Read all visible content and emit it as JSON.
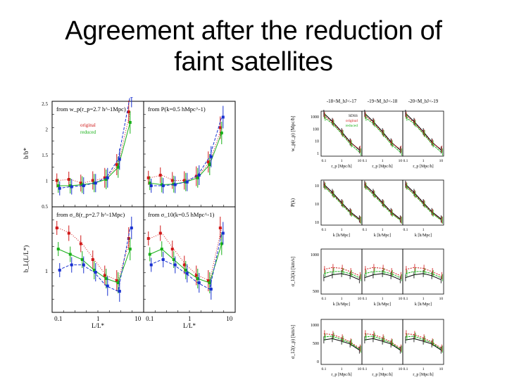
{
  "slide": {
    "title_line1": "Agreement after the reduction of",
    "title_line2": "faint satellites"
  },
  "colors": {
    "black": "#000000",
    "red": "#d01818",
    "green": "#18b018",
    "blue": "#1830d0",
    "magenta": "#c020c0"
  },
  "chart_data": [
    {
      "type": "line",
      "figure": "left",
      "rows": 2,
      "cols": 2,
      "x_ticks": [
        "0.1",
        "1",
        "10"
      ],
      "x_label": "L/L*",
      "y_label_top": "b/b*",
      "y_label_bottom": "b_L(L/L*)",
      "y_ticks_top": [
        "2.5",
        "2",
        "1.5",
        "1",
        "0.5"
      ],
      "y_ticks_bottom": [
        "1"
      ],
      "legend": [
        "original",
        "reduced"
      ],
      "panels": [
        {
          "label": "from w_p(r_p=2.7 h^-1Mpc)",
          "x": [
            0.1,
            0.2,
            0.4,
            0.8,
            1.6,
            3.2,
            6.4
          ],
          "series": [
            {
              "color": "red",
              "values": [
                1.0,
                1.02,
                0.95,
                1.0,
                1.05,
                1.3,
                2.3
              ]
            },
            {
              "color": "green",
              "values": [
                0.9,
                0.9,
                0.92,
                0.95,
                1.02,
                1.25,
                2.1
              ]
            },
            {
              "color": "blue",
              "values": [
                0.85,
                0.88,
                0.9,
                0.95,
                1.05,
                1.4,
                2.6
              ]
            }
          ]
        },
        {
          "label": "from P(k=0.5 hMpc^-1)",
          "x": [
            0.1,
            0.2,
            0.4,
            0.8,
            1.6,
            3.2,
            6.4
          ],
          "series": [
            {
              "color": "red",
              "values": [
                1.05,
                1.1,
                1.0,
                1.0,
                1.08,
                1.35,
                2.0
              ]
            },
            {
              "color": "green",
              "values": [
                0.95,
                0.92,
                0.93,
                0.97,
                1.05,
                1.3,
                1.9
              ]
            },
            {
              "color": "blue",
              "values": [
                0.9,
                0.9,
                0.92,
                0.97,
                1.1,
                1.45,
                2.2
              ]
            }
          ]
        },
        {
          "label": "from σ_8(r_p=2.7 h^-1Mpc)",
          "x": [
            0.1,
            0.2,
            0.4,
            0.8,
            1.6,
            3.2,
            6.4
          ],
          "series": [
            {
              "color": "red",
              "values": [
                1.4,
                1.35,
                1.25,
                1.1,
                0.95,
                0.9,
                1.3
              ]
            },
            {
              "color": "green",
              "values": [
                1.2,
                1.15,
                1.1,
                1.0,
                0.92,
                0.88,
                1.2
              ]
            },
            {
              "color": "blue",
              "values": [
                1.0,
                1.05,
                1.05,
                0.98,
                0.85,
                0.8,
                1.4
              ]
            }
          ]
        },
        {
          "label": "from σ_10(k=0.5 hMpc^-1)",
          "x": [
            0.1,
            0.2,
            0.4,
            0.8,
            1.6,
            3.2,
            6.4
          ],
          "series": [
            {
              "color": "red",
              "values": [
                1.3,
                1.35,
                1.2,
                1.05,
                0.95,
                0.9,
                1.4
              ]
            },
            {
              "color": "green",
              "values": [
                1.15,
                1.2,
                1.1,
                1.0,
                0.92,
                0.88,
                1.25
              ]
            },
            {
              "color": "blue",
              "values": [
                1.05,
                1.1,
                1.05,
                0.97,
                0.88,
                0.82,
                1.35
              ]
            }
          ]
        }
      ]
    },
    {
      "type": "line",
      "figure": "right",
      "rows": 4,
      "cols": 3,
      "column_headers": [
        "-18<M_bJ<-17",
        "-19<M_bJ<-18",
        "-20<M_bJ<-19"
      ],
      "legend": [
        "SDSS",
        "original",
        "reduced"
      ],
      "row_x_ticks": [
        [
          "0.1",
          "1",
          "10"
        ],
        [
          "0.1",
          "1"
        ],
        [
          "0.1",
          "1",
          "10"
        ],
        [
          "0.1",
          "1",
          "10"
        ]
      ],
      "row_x_labels": [
        "r_p [Mpc/h]",
        "k [h/Mpc]",
        "k [h/Mpc]",
        "r_p [Mpc/h]"
      ],
      "row_y_labels": [
        "w_p(r_p) [Mpc/h]",
        "P(k)",
        "σ_12(k) [km/s]",
        "σ_12(r_p) [km/s]"
      ],
      "row_y_ticks": [
        [
          "1000",
          "100",
          "10",
          "1"
        ],
        [
          "10",
          "10",
          "10"
        ],
        [
          "1000",
          "500"
        ],
        [
          "1000",
          "500",
          "0"
        ]
      ],
      "rows_data": [
        {
          "x": [
            0.1,
            0.3,
            1,
            3,
            10
          ],
          "series": [
            {
              "color": "black",
              "values": [
                1.0,
                0.8,
                0.55,
                0.3,
                0.1
              ]
            },
            {
              "color": "red",
              "values": [
                0.95,
                0.78,
                0.52,
                0.28,
                0.12
              ]
            },
            {
              "color": "green",
              "values": [
                0.9,
                0.75,
                0.5,
                0.25,
                0.05
              ]
            }
          ]
        },
        {
          "x": [
            0.1,
            0.3,
            1,
            3,
            10
          ],
          "series": [
            {
              "color": "black",
              "values": [
                0.95,
                0.75,
                0.5,
                0.28,
                0.1
              ]
            },
            {
              "color": "red",
              "values": [
                0.92,
                0.72,
                0.48,
                0.26,
                0.08
              ]
            },
            {
              "color": "green",
              "values": [
                0.9,
                0.7,
                0.46,
                0.24,
                0.07
              ]
            }
          ]
        },
        {
          "x": [
            0.1,
            0.3,
            1,
            3,
            10
          ],
          "series": [
            {
              "color": "black",
              "values": [
                0.35,
                0.42,
                0.45,
                0.4,
                0.3
              ]
            },
            {
              "color": "red",
              "values": [
                0.55,
                0.6,
                0.58,
                0.5,
                0.4
              ]
            },
            {
              "color": "green",
              "values": [
                0.45,
                0.5,
                0.5,
                0.45,
                0.35
              ]
            }
          ]
        },
        {
          "x": [
            0.1,
            0.3,
            1,
            3,
            10
          ],
          "series": [
            {
              "color": "black",
              "values": [
                0.55,
                0.58,
                0.52,
                0.45,
                0.3
              ]
            },
            {
              "color": "red",
              "values": [
                0.7,
                0.68,
                0.6,
                0.5,
                0.35
              ]
            },
            {
              "color": "green",
              "values": [
                0.62,
                0.64,
                0.56,
                0.48,
                0.32
              ]
            }
          ]
        }
      ]
    }
  ]
}
